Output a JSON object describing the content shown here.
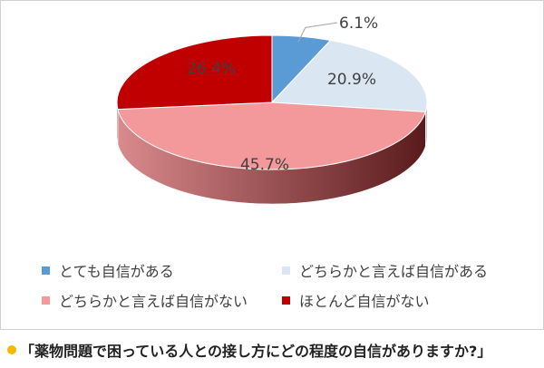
{
  "chart_data": {
    "type": "pie",
    "title": "",
    "categories": [
      "とても自信がある",
      "どちらかと言えば自信がある",
      "どちらかと言えば自信がない",
      "ほとんど自信がない"
    ],
    "values": [
      6.1,
      20.9,
      45.7,
      26.4
    ],
    "data_labels": [
      "6.1%",
      "20.9%",
      "45.7%",
      "26.4%"
    ],
    "colors": [
      "#5b9bd5",
      "#dae6f2",
      "#f4999b",
      "#c00000"
    ],
    "side_colors": [
      "#3f6f9a",
      "#a9b4bf",
      "#c77a7c",
      "#7c0000"
    ],
    "legend_position": "bottom",
    "style": "3d-pie"
  },
  "caption": {
    "bullet_color": "#f5b800",
    "text": "「薬物問題で困っている人との接し方にどの程度の自信がありますか?」"
  }
}
